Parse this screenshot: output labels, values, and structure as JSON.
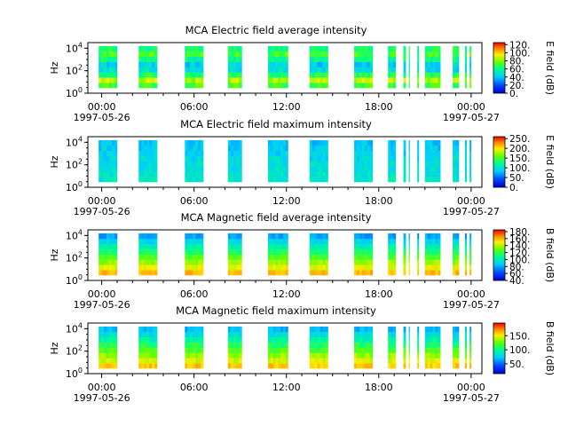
{
  "chart_data": [
    {
      "type": "heatmap",
      "title": "MCA  Electric field average intensity",
      "ylabel": "Hz",
      "yscale": "log",
      "ylim_exp": [
        0,
        4
      ],
      "yticks": [
        "10^0",
        "10^2",
        "10^4"
      ],
      "xticks": [
        {
          "time": "00:00",
          "date": "1997-05-26"
        },
        {
          "time": "06:00",
          "date": ""
        },
        {
          "time": "12:00",
          "date": ""
        },
        {
          "time": "18:00",
          "date": ""
        },
        {
          "time": "00:00",
          "date": "1997-05-27"
        }
      ],
      "colorbar": {
        "label": "E field (dB)",
        "range": [
          0,
          125
        ],
        "ticks": [
          "0.",
          "20.",
          "40.",
          "60.",
          "80.",
          "100.",
          "120."
        ]
      },
      "data_gaps_note": "",
      "palette": "avg_e"
    },
    {
      "type": "heatmap",
      "title": "MCA  Electric field maximum intensity",
      "ylabel": "Hz",
      "yscale": "log",
      "ylim_exp": [
        0,
        4
      ],
      "yticks": [
        "10^0",
        "10^2",
        "10^4"
      ],
      "xticks": [
        {
          "time": "00:00",
          "date": "1997-05-26"
        },
        {
          "time": "06:00",
          "date": ""
        },
        {
          "time": "12:00",
          "date": ""
        },
        {
          "time": "18:00",
          "date": ""
        },
        {
          "time": "00:00",
          "date": "1997-05-27"
        }
      ],
      "colorbar": {
        "label": "E field (dB)",
        "range": [
          0,
          260
        ],
        "ticks": [
          "0.",
          "50.",
          "100.",
          "150.",
          "200.",
          "250."
        ]
      },
      "palette": "max_e"
    },
    {
      "type": "heatmap",
      "title": "MCA  Magnetic field average intensity",
      "ylabel": "Hz",
      "yscale": "log",
      "ylim_exp": [
        0,
        4
      ],
      "yticks": [
        "10^0",
        "10^2",
        "10^4"
      ],
      "xticks": [
        {
          "time": "00:00",
          "date": "1997-05-26"
        },
        {
          "time": "06:00",
          "date": ""
        },
        {
          "time": "12:00",
          "date": ""
        },
        {
          "time": "18:00",
          "date": ""
        },
        {
          "time": "00:00",
          "date": "1997-05-27"
        }
      ],
      "colorbar": {
        "label": "B field (dB)",
        "range": [
          40,
          185
        ],
        "ticks": [
          "40.",
          "60.",
          "80.",
          "100.",
          "120.",
          "140.",
          "160.",
          "180."
        ]
      },
      "palette": "avg_b"
    },
    {
      "type": "heatmap",
      "title": "MCA  Magnetic field maximum intensity",
      "ylabel": "Hz",
      "yscale": "log",
      "ylim_exp": [
        0,
        4
      ],
      "yticks": [
        "10^0",
        "10^2",
        "10^4"
      ],
      "xticks": [
        {
          "time": "00:00",
          "date": "1997-05-26"
        },
        {
          "time": "06:00",
          "date": ""
        },
        {
          "time": "12:00",
          "date": ""
        },
        {
          "time": "18:00",
          "date": ""
        },
        {
          "time": "00:00",
          "date": "1997-05-27"
        }
      ],
      "colorbar": {
        "label": "B field (dB)",
        "range": [
          15,
          195
        ],
        "ticks": [
          "50.",
          "100.",
          "150."
        ]
      },
      "palette": "max_b"
    }
  ],
  "time_axis": {
    "start_hour": -0.9,
    "end_hour": 24.7
  },
  "data_intervals_hours": [
    [
      -0.2,
      1.0
    ],
    [
      2.4,
      3.6
    ],
    [
      5.4,
      6.6
    ],
    [
      8.2,
      9.1
    ],
    [
      10.8,
      12.1
    ],
    [
      13.5,
      14.7
    ],
    [
      16.4,
      17.6
    ],
    [
      18.6,
      19.1
    ],
    [
      19.6,
      19.75
    ],
    [
      19.95,
      20.0
    ],
    [
      20.5,
      20.6
    ],
    [
      21.0,
      22.0
    ],
    [
      22.8,
      23.2
    ],
    [
      23.6,
      23.7
    ],
    [
      23.9,
      24.0
    ]
  ]
}
